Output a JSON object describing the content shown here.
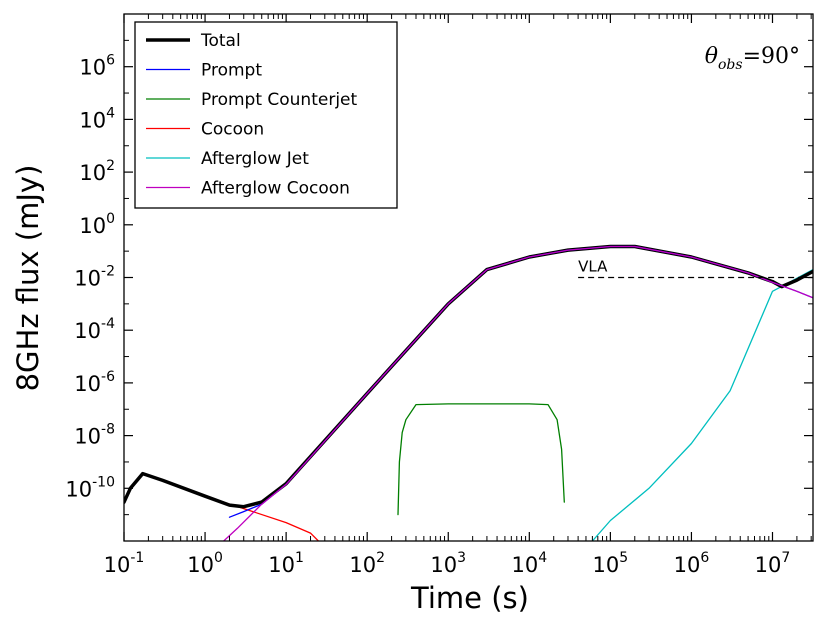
{
  "chart_data": {
    "type": "line",
    "xlabel": "Time (s)",
    "ylabel": "8GHz flux (mJy)",
    "x_scale": "log",
    "y_scale": "log",
    "xlim": [
      0.1,
      31600000
    ],
    "ylim": [
      1e-12,
      100000000.0
    ],
    "x_ticks": [
      {
        "value": 0.1,
        "base": "10",
        "exp": "-1"
      },
      {
        "value": 1,
        "base": "10",
        "exp": "0"
      },
      {
        "value": 10,
        "base": "10",
        "exp": "1"
      },
      {
        "value": 100,
        "base": "10",
        "exp": "2"
      },
      {
        "value": 1000,
        "base": "10",
        "exp": "3"
      },
      {
        "value": 10000,
        "base": "10",
        "exp": "4"
      },
      {
        "value": 100000,
        "base": "10",
        "exp": "5"
      },
      {
        "value": 1000000,
        "base": "10",
        "exp": "6"
      },
      {
        "value": 10000000,
        "base": "10",
        "exp": "7"
      }
    ],
    "y_ticks": [
      {
        "value": 1e-10,
        "base": "10",
        "exp": "-10"
      },
      {
        "value": 1e-08,
        "base": "10",
        "exp": "-8"
      },
      {
        "value": 1e-06,
        "base": "10",
        "exp": "-6"
      },
      {
        "value": 0.0001,
        "base": "10",
        "exp": "-4"
      },
      {
        "value": 0.01,
        "base": "10",
        "exp": "-2"
      },
      {
        "value": 1,
        "base": "10",
        "exp": "0"
      },
      {
        "value": 100,
        "base": "10",
        "exp": "2"
      },
      {
        "value": 10000,
        "base": "10",
        "exp": "4"
      },
      {
        "value": 1000000,
        "base": "10",
        "exp": "6"
      }
    ],
    "legend_position": "top-left",
    "series": [
      {
        "name": "Total",
        "color": "#000000",
        "width": 3.5,
        "x": [
          0.1,
          0.12,
          0.17,
          0.3,
          1,
          2,
          3,
          5,
          10,
          100,
          1000,
          3000,
          10000,
          30000,
          100000,
          200000,
          1000000,
          5000000,
          10000000,
          13000000,
          20000000,
          31600000
        ],
        "y": [
          3e-11,
          1e-10,
          3.6e-10,
          2e-10,
          5e-11,
          2.3e-11,
          2e-11,
          3e-11,
          1.5e-10,
          4e-07,
          0.001,
          0.02,
          0.06,
          0.11,
          0.15,
          0.15,
          0.06,
          0.015,
          0.007,
          0.0045,
          0.008,
          0.017
        ]
      },
      {
        "name": "Prompt",
        "color": "#0000ff",
        "width": 1.3,
        "x": [
          2,
          3,
          5,
          10,
          100,
          1000,
          3000,
          10000,
          30000,
          100000,
          200000,
          1000000,
          5000000,
          10000000,
          20000000,
          31600000
        ],
        "y": [
          8e-12,
          1.3e-11,
          2.5e-11,
          1.4e-10,
          4e-07,
          0.001,
          0.02,
          0.06,
          0.11,
          0.15,
          0.15,
          0.06,
          0.015,
          0.0065,
          0.003,
          0.0017
        ]
      },
      {
        "name": "Prompt Counterjet",
        "color": "#007f00",
        "width": 1.3,
        "x": [
          240,
          250,
          270,
          300,
          400,
          1000,
          10000,
          17000,
          22000,
          25000,
          27000
        ],
        "y": [
          1e-11,
          1e-09,
          1.3e-08,
          4e-08,
          1.5e-07,
          1.6e-07,
          1.6e-07,
          1.5e-07,
          4e-08,
          3e-09,
          3e-11
        ]
      },
      {
        "name": "Cocoon",
        "color": "#ff0000",
        "width": 1.3,
        "x": [
          0.1,
          0.12,
          0.17,
          0.3,
          1,
          3,
          10,
          20,
          25
        ],
        "y": [
          3e-11,
          1e-10,
          3.6e-10,
          2e-10,
          5e-11,
          1.7e-11,
          5e-12,
          2e-12,
          1e-12
        ]
      },
      {
        "name": "Afterglow Jet",
        "color": "#00bfbf",
        "width": 1.3,
        "x": [
          60000,
          100000,
          300000,
          1000000,
          3000000,
          10000000,
          31600000
        ],
        "y": [
          1e-12,
          6e-12,
          1e-10,
          5e-09,
          5e-07,
          0.003,
          0.02
        ]
      },
      {
        "name": "Afterglow Cocoon",
        "color": "#bf00bf",
        "width": 1.3,
        "x": [
          1.7,
          2.5,
          5,
          10,
          100,
          1000,
          3000,
          10000,
          30000,
          100000,
          200000,
          1000000,
          5000000,
          10000000,
          20000000,
          31600000
        ],
        "y": [
          1e-12,
          3e-12,
          2.5e-11,
          1.4e-10,
          4e-07,
          0.001,
          0.02,
          0.06,
          0.11,
          0.15,
          0.15,
          0.06,
          0.015,
          0.0065,
          0.003,
          0.0017
        ]
      }
    ],
    "reference_line": {
      "label": "VLA",
      "y": 0.01,
      "x": [
        40000,
        31600000
      ],
      "style": "dashed"
    },
    "annotation": {
      "theta": "θ",
      "sub": "obs",
      "rest": "=90°"
    }
  }
}
